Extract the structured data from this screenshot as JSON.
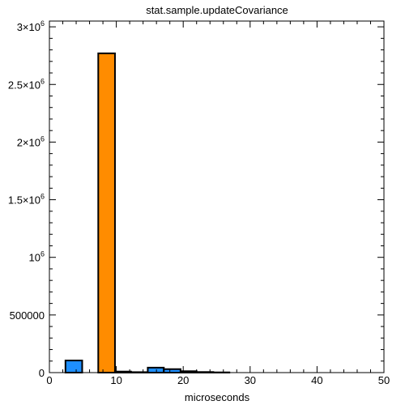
{
  "chart_data": {
    "type": "bar",
    "title": "stat.sample.updateCovariance",
    "xlabel": "microseconds",
    "ylabel": "",
    "xlim": [
      0,
      50
    ],
    "ylim": [
      0,
      3050000
    ],
    "grid": false,
    "x_ticks": [
      0,
      10,
      20,
      30,
      40,
      50
    ],
    "y_ticks": [
      {
        "value": 0,
        "mantissa": "0",
        "exp": ""
      },
      {
        "value": 500000,
        "mantissa": "500000",
        "exp": ""
      },
      {
        "value": 1000000,
        "mantissa": "10",
        "exp": "6"
      },
      {
        "value": 1500000,
        "mantissa": "1.5×10",
        "exp": "6"
      },
      {
        "value": 2000000,
        "mantissa": "2×10",
        "exp": "6"
      },
      {
        "value": 2500000,
        "mantissa": "2.5×10",
        "exp": "6"
      },
      {
        "value": 3000000,
        "mantissa": "3×10",
        "exp": "6"
      }
    ],
    "bars": [
      {
        "x0": 2.4,
        "x1": 4.9,
        "value": 105000,
        "color": "#1e8fff"
      },
      {
        "x0": 7.3,
        "x1": 9.8,
        "value": 2770000,
        "color": "#ff8c00"
      },
      {
        "x0": 9.8,
        "x1": 12.2,
        "value": 9000,
        "color": "#1e8fff"
      },
      {
        "x0": 12.2,
        "x1": 14.7,
        "value": 4000,
        "color": "#1e8fff"
      },
      {
        "x0": 14.7,
        "x1": 17.1,
        "value": 43000,
        "color": "#1e8fff"
      },
      {
        "x0": 17.1,
        "x1": 19.6,
        "value": 30000,
        "color": "#1e8fff"
      },
      {
        "x0": 19.6,
        "x1": 22.0,
        "value": 12000,
        "color": "#1e8fff"
      },
      {
        "x0": 22.0,
        "x1": 24.5,
        "value": 5000,
        "color": "#1e8fff"
      },
      {
        "x0": 24.5,
        "x1": 26.9,
        "value": 2000,
        "color": "#1e8fff"
      }
    ]
  }
}
